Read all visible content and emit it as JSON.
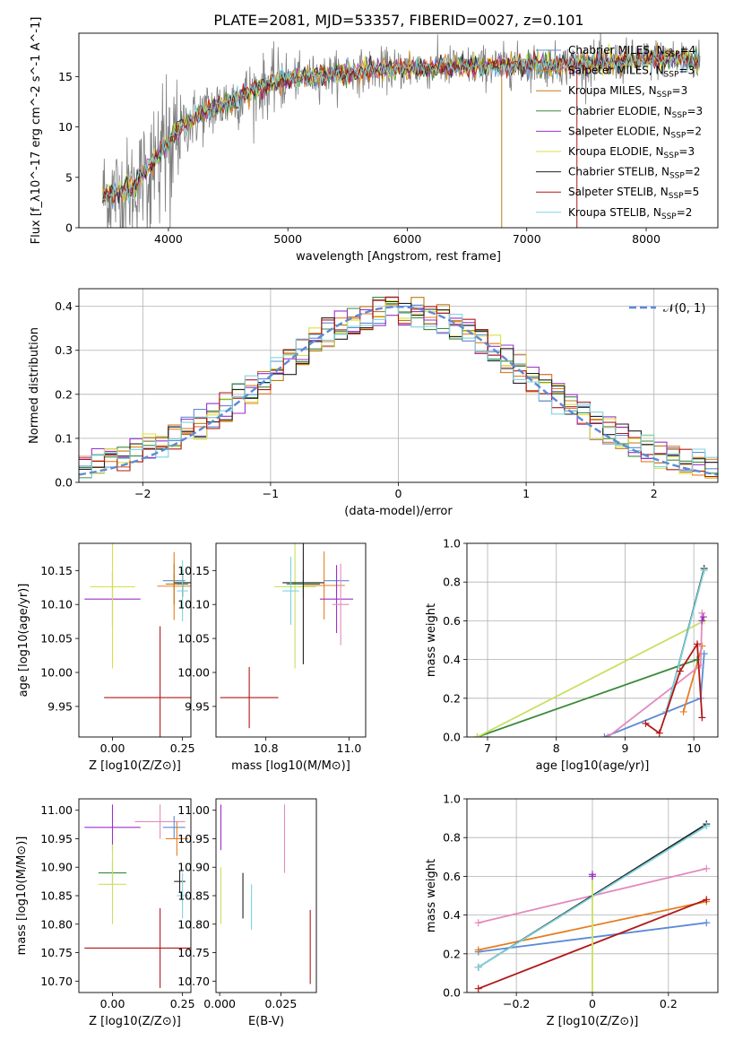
{
  "figure": {
    "title": "PLATE=2081, MJD=53357, FIBERID=0027, z=0.101"
  },
  "colors": {
    "chabrier_miles": "#5b8bd6",
    "salpeter_miles": "#e67e22",
    "kroupa_miles": "#c27b0e",
    "chabrier_elodie": "#3a8a3a",
    "salpeter_elodie": "#9b30c8",
    "kroupa_elodie": "#d8e040",
    "chabrier_stelib": "#222222",
    "salpeter_stelib": "#b21818",
    "kroupa_stelib": "#7fd3dd",
    "gauss": "#5b8bd6",
    "spectrum": "#7f7f7f",
    "pink": "#e28bbf",
    "yellowgreen": "#c8e060"
  },
  "legend": [
    {
      "name": "Chabrier MILES",
      "n": "4",
      "color": "#5b8bd6"
    },
    {
      "name": "Salpeter MILES",
      "n": "3",
      "color": "#e67e22"
    },
    {
      "name": "Kroupa MILES",
      "n": "3",
      "color": "#c27b0e"
    },
    {
      "name": "Chabrier ELODIE",
      "n": "3",
      "color": "#3a8a3a"
    },
    {
      "name": "Salpeter ELODIE",
      "n": "2",
      "color": "#9b30c8"
    },
    {
      "name": "Kroupa ELODIE",
      "n": "3",
      "color": "#d8e040"
    },
    {
      "name": "Chabrier STELIB",
      "n": "2",
      "color": "#222222"
    },
    {
      "name": "Salpeter STELIB",
      "n": "5",
      "color": "#b21818"
    },
    {
      "name": "Kroupa STELIB",
      "n": "2",
      "color": "#7fd3dd"
    }
  ],
  "chart_data": [
    {
      "id": "spectrum",
      "type": "line",
      "xlabel": "wavelength [Angstrom, rest frame]",
      "ylabel": "Flux [f_λ10^-17 erg cm^-2 s^-1 A^-1]",
      "xlim": [
        3250,
        8600
      ],
      "ylim": [
        0,
        19.3
      ],
      "xticks": [
        4000,
        5000,
        6000,
        7000,
        8000
      ],
      "yticks": [
        0,
        5,
        10,
        15
      ],
      "grid": false,
      "legend_position": "top-right",
      "continuum_points": [
        [
          3450,
          3.2
        ],
        [
          3700,
          3.8
        ],
        [
          3900,
          7
        ],
        [
          4050,
          9.5
        ],
        [
          4300,
          11.5
        ],
        [
          4600,
          13
        ],
        [
          4900,
          14.5
        ],
        [
          5200,
          15
        ],
        [
          5500,
          15.4
        ],
        [
          5800,
          15.7
        ],
        [
          6100,
          15.8
        ],
        [
          6400,
          16
        ],
        [
          6700,
          16
        ],
        [
          7000,
          16.2
        ],
        [
          7300,
          16.2
        ],
        [
          7600,
          16.3
        ],
        [
          7900,
          16.6
        ],
        [
          8200,
          16.8
        ],
        [
          8450,
          16.5
        ]
      ]
    },
    {
      "id": "residuals",
      "type": "line",
      "xlabel": "(data-model)/error",
      "ylabel": "Normed distribution",
      "xlim": [
        -2.5,
        2.5
      ],
      "ylim": [
        0,
        0.44
      ],
      "xticks": [
        -2,
        -1,
        0,
        1,
        2
      ],
      "yticks": [
        0.0,
        0.1,
        0.2,
        0.3,
        0.4
      ],
      "grid": true,
      "legend_position": "top-right",
      "gauss_label": "𝒩(0, 1)",
      "hist_bin_width": 0.1
    },
    {
      "id": "age_vs_z",
      "type": "scatter",
      "xlabel": "Z [log10(Z/Z⊙)]",
      "ylabel": "age  [log10(age/yr)]",
      "xlim": [
        -0.12,
        0.28
      ],
      "ylim": [
        9.905,
        10.19
      ],
      "xticks": [
        0.0,
        0.25
      ],
      "yticks": [
        9.95,
        10.0,
        10.05,
        10.1,
        10.15
      ],
      "grid": false,
      "points": [
        {
          "color": "#5b8bd6",
          "x": 0.22,
          "y": 10.135,
          "xerr": 0.04,
          "yerr": 0.01
        },
        {
          "color": "#e67e22",
          "x": 0.22,
          "y": 10.127,
          "xerr": 0.06,
          "yerr": 0.05
        },
        {
          "color": "#c27b0e",
          "x": 0.22,
          "y": 10.13,
          "xerr": 0.03,
          "yerr": 0.03
        },
        {
          "color": "#3a8a3a",
          "x": 0.25,
          "y": 10.13,
          "xerr": 0.02,
          "yerr": 0.02
        },
        {
          "color": "#9b30c8",
          "x": 0.0,
          "y": 10.108,
          "xerr": 0.1,
          "yerr": 0.04
        },
        {
          "color": "#d8e040",
          "x": 0.0,
          "y": 10.126,
          "xerr": 0.08,
          "yerr": 0.12
        },
        {
          "color": "#222222",
          "x": 0.25,
          "y": 10.132,
          "xerr": 0.03,
          "yerr": 0.02
        },
        {
          "color": "#b21818",
          "x": 0.17,
          "y": 9.963,
          "xerr": 0.2,
          "yerr": 0.105
        },
        {
          "color": "#7fd3dd",
          "x": 0.25,
          "y": 10.12,
          "xerr": 0.02,
          "yerr": 0.045
        }
      ]
    },
    {
      "id": "age_vs_mass",
      "type": "scatter",
      "xlabel": "mass [log10(M/M⊙)]",
      "ylabel": "",
      "xlim": [
        10.68,
        11.04
      ],
      "ylim": [
        9.905,
        10.19
      ],
      "xticks": [
        10.8,
        11.0
      ],
      "yticks": [
        9.95,
        10.0,
        10.05,
        10.1,
        10.15
      ],
      "grid": false,
      "points": [
        {
          "color": "#5b8bd6",
          "x": 10.97,
          "y": 10.135,
          "xerr": 0.03,
          "yerr": 0.02
        },
        {
          "color": "#e67e22",
          "x": 10.94,
          "y": 10.128,
          "xerr": 0.05,
          "yerr": 0.05
        },
        {
          "color": "#9b30c8",
          "x": 10.97,
          "y": 10.108,
          "xerr": 0.04,
          "yerr": 0.05
        },
        {
          "color": "#e28bbf",
          "x": 10.98,
          "y": 10.1,
          "xerr": 0.02,
          "yerr": 0.06
        },
        {
          "color": "#c8e060",
          "x": 10.87,
          "y": 10.126,
          "xerr": 0.05,
          "yerr": 0.12
        },
        {
          "color": "#3a8a3a",
          "x": 10.89,
          "y": 10.13,
          "xerr": 0.04,
          "yerr": 0.02
        },
        {
          "color": "#222222",
          "x": 10.89,
          "y": 10.132,
          "xerr": 0.05,
          "yerr": 0.12
        },
        {
          "color": "#7fd3dd",
          "x": 10.86,
          "y": 10.12,
          "xerr": 0.02,
          "yerr": 0.05
        },
        {
          "color": "#b21818",
          "x": 10.76,
          "y": 9.963,
          "xerr": 0.07,
          "yerr": 0.045
        }
      ]
    },
    {
      "id": "weight_vs_age",
      "type": "line",
      "xlabel": "age  [log10(age/yr)]",
      "ylabel": "mass weight",
      "xlim": [
        6.7,
        10.35
      ],
      "ylim": [
        0,
        1.0
      ],
      "xticks": [
        7,
        8,
        9,
        10
      ],
      "yticks": [
        0.0,
        0.2,
        0.4,
        0.6,
        0.8,
        1.0
      ],
      "grid": true,
      "series": [
        {
          "color": "#5b8bd6",
          "points": [
            [
              8.7,
              0.0
            ],
            [
              10.1,
              0.2
            ],
            [
              10.15,
              0.43
            ]
          ]
        },
        {
          "color": "#e67e22",
          "points": [
            [
              9.85,
              0.13
            ],
            [
              10.12,
              0.47
            ]
          ]
        },
        {
          "color": "#3a8a3a",
          "points": [
            [
              6.85,
              0.0
            ],
            [
              10.05,
              0.4
            ]
          ]
        },
        {
          "color": "#c8e060",
          "points": [
            [
              6.85,
              0.0
            ],
            [
              10.15,
              0.6
            ]
          ]
        },
        {
          "color": "#e28bbf",
          "points": [
            [
              8.75,
              0.0
            ],
            [
              10.1,
              0.37
            ],
            [
              10.12,
              0.64
            ]
          ]
        },
        {
          "color": "#9b30c8",
          "points": [
            [
              10.12,
              0.6
            ],
            [
              10.14,
              0.62
            ]
          ]
        },
        {
          "color": "#222222",
          "points": [
            [
              9.6,
              0.13
            ],
            [
              10.15,
              0.87
            ]
          ]
        },
        {
          "color": "#7fd3dd",
          "points": [
            [
              9.6,
              0.13
            ],
            [
              10.15,
              0.86
            ]
          ]
        },
        {
          "color": "#b21818",
          "points": [
            [
              9.3,
              0.07
            ],
            [
              9.5,
              0.02
            ],
            [
              9.8,
              0.34
            ],
            [
              10.05,
              0.48
            ],
            [
              10.12,
              0.1
            ]
          ]
        }
      ]
    },
    {
      "id": "mass_vs_z",
      "type": "scatter",
      "xlabel": "Z [log10(Z/Z⊙)]",
      "ylabel": "mass [log10(M/M⊙)]",
      "xlim": [
        -0.12,
        0.28
      ],
      "ylim": [
        10.68,
        11.02
      ],
      "xticks": [
        0.0,
        0.25
      ],
      "yticks": [
        10.7,
        10.75,
        10.8,
        10.85,
        10.9,
        10.95,
        11.0
      ],
      "grid": false,
      "points": [
        {
          "color": "#9b30c8",
          "x": 0.0,
          "y": 10.97,
          "xerr": 0.1,
          "yerr": 0.04
        },
        {
          "color": "#e28bbf",
          "x": 0.17,
          "y": 10.98,
          "xerr": 0.09,
          "yerr": 0.03
        },
        {
          "color": "#5b8bd6",
          "x": 0.22,
          "y": 10.97,
          "xerr": 0.04,
          "yerr": 0.02
        },
        {
          "color": "#e67e22",
          "x": 0.23,
          "y": 10.95,
          "xerr": 0.04,
          "yerr": 0.03
        },
        {
          "color": "#3a8a3a",
          "x": 0.0,
          "y": 10.89,
          "xerr": 0.05,
          "yerr": 0.02
        },
        {
          "color": "#c8e060",
          "x": 0.0,
          "y": 10.87,
          "xerr": 0.05,
          "yerr": 0.07
        },
        {
          "color": "#222222",
          "x": 0.24,
          "y": 10.875,
          "xerr": 0.02,
          "yerr": 0.02
        },
        {
          "color": "#7fd3dd",
          "x": 0.25,
          "y": 10.85,
          "xerr": 0.02,
          "yerr": 0.04
        },
        {
          "color": "#b21818",
          "x": 0.17,
          "y": 10.758,
          "xerr": 0.27,
          "yerr": 0.07
        }
      ]
    },
    {
      "id": "mass_vs_ebv",
      "type": "scatter",
      "xlabel": "E(B-V)",
      "ylabel": "",
      "xlim": [
        -0.0015,
        0.0395
      ],
      "ylim": [
        10.68,
        11.02
      ],
      "xticks": [
        0.0,
        0.025
      ],
      "yticks": [
        10.7,
        10.75,
        10.8,
        10.85,
        10.9,
        10.95,
        11.0
      ],
      "grid": false,
      "points": [
        {
          "color": "#9b30c8",
          "x": 0.0005,
          "y": 10.97,
          "xerr": 0.0,
          "yerr": 0.04
        },
        {
          "color": "#c8e060",
          "x": 0.0005,
          "y": 10.85,
          "xerr": 0.0,
          "yerr": 0.05
        },
        {
          "color": "#222222",
          "x": 0.0095,
          "y": 10.85,
          "xerr": 0.0,
          "yerr": 0.04
        },
        {
          "color": "#7fd3dd",
          "x": 0.013,
          "y": 10.83,
          "xerr": 0.0,
          "yerr": 0.04
        },
        {
          "color": "#e28bbf",
          "x": 0.0265,
          "y": 10.95,
          "xerr": 0.0,
          "yerr": 0.06
        },
        {
          "color": "#b21818",
          "x": 0.037,
          "y": 10.76,
          "xerr": 0.0,
          "yerr": 0.065
        }
      ]
    },
    {
      "id": "weight_vs_z",
      "type": "line",
      "xlabel": "Z [log10(Z/Z⊙)]",
      "ylabel": "mass weight",
      "xlim": [
        -0.33,
        0.33
      ],
      "ylim": [
        0,
        1.0
      ],
      "xticks": [
        -0.2,
        0.0,
        0.2
      ],
      "yticks": [
        0.0,
        0.2,
        0.4,
        0.6,
        0.8,
        1.0
      ],
      "grid": true,
      "series": [
        {
          "color": "#5b8bd6",
          "points": [
            [
              -0.3,
              0.21
            ],
            [
              0.3,
              0.36
            ]
          ]
        },
        {
          "color": "#e67e22",
          "points": [
            [
              -0.3,
              0.22
            ],
            [
              0.3,
              0.47
            ]
          ]
        },
        {
          "color": "#e28bbf",
          "points": [
            [
              -0.3,
              0.36
            ],
            [
              0.3,
              0.64
            ]
          ]
        },
        {
          "color": "#222222",
          "points": [
            [
              -0.3,
              0.13
            ],
            [
              0.3,
              0.87
            ]
          ]
        },
        {
          "color": "#7fd3dd",
          "points": [
            [
              -0.3,
              0.13
            ],
            [
              0.3,
              0.86
            ]
          ]
        },
        {
          "color": "#b21818",
          "points": [
            [
              -0.3,
              0.02
            ],
            [
              0.3,
              0.48
            ]
          ]
        },
        {
          "color": "#c8e060",
          "points": [
            [
              0.0,
              0.0
            ],
            [
              0.0,
              0.6
            ]
          ]
        },
        {
          "color": "#9b30c8",
          "points": [
            [
              0.0,
              0.6
            ],
            [
              0.0,
              0.61
            ]
          ]
        }
      ]
    }
  ]
}
